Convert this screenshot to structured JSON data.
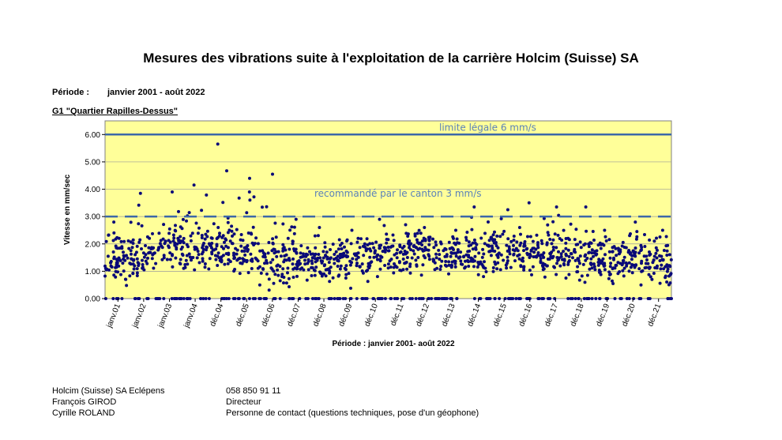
{
  "title": "Mesures des vibrations suite à l'exploitation de la carrière Holcim (Suisse) SA",
  "period_label": "Période :",
  "period_value": "janvier 2001 - août 2022",
  "station": "G1 \"Quartier Rapilles-Dessus\"",
  "footer": [
    {
      "left": "Holcim (Suisse) SA Eclépens",
      "right": "058 850 91 11"
    },
    {
      "left": "François GIROD",
      "right": "Directeur"
    },
    {
      "left": "Cyrille ROLAND",
      "right": "Personne de contact (questions techniques, pose d'un géophone)"
    }
  ],
  "colors": {
    "plot_background": "#ffff99",
    "points": "#0a0a78",
    "legal_limit_line": "#3c68a8",
    "recommended_line": "#3c68a8",
    "gridlines": "#9a9a9a",
    "annotation_text": "#5b82b9"
  },
  "chart_data": {
    "type": "scatter",
    "title": "Mesures des vibrations suite à l'exploitation de la carrière Holcim (Suisse) SA",
    "xlabel": "Période : janvier 2001- août 2022",
    "ylabel": "Vitesse en mm/sec",
    "ylim": [
      0,
      6.5
    ],
    "y_ticks": [
      "0.00",
      "1.00",
      "2.00",
      "3.00",
      "4.00",
      "5.00",
      "6.00"
    ],
    "x_ticks": [
      "janv.01",
      "janv.02",
      "janv.03",
      "janv.04",
      "déc.04",
      "déc.05",
      "déc.06",
      "déc.07",
      "déc.08",
      "déc.09",
      "déc.10",
      "déc.11",
      "déc.12",
      "déc.13",
      "déc.14",
      "déc.15",
      "déc.16",
      "déc.17",
      "déc.18",
      "déc.19",
      "déc.20",
      "déc.21"
    ],
    "grid": "horizontal",
    "legend": "none",
    "reference_lines": [
      {
        "label": "limite légale 6 mm/s",
        "y": 6.0,
        "style": "solid"
      },
      {
        "label": "recommandé par le canton 3 mm/s",
        "y": 3.0,
        "style": "dashed"
      }
    ],
    "series": [
      {
        "points_per_period_note": "approximate cloud of measurements per year",
        "x": [
          "janv.01",
          "janv.02",
          "janv.03",
          "janv.04",
          "déc.04",
          "déc.05",
          "déc.06",
          "déc.07",
          "déc.08",
          "déc.09",
          "déc.10",
          "déc.11",
          "déc.12",
          "déc.13",
          "déc.14",
          "déc.15",
          "déc.16",
          "déc.17",
          "déc.18",
          "déc.19",
          "déc.20",
          "déc.21"
        ],
        "median": [
          1.5,
          1.6,
          1.9,
          1.9,
          1.9,
          1.7,
          1.3,
          1.3,
          1.3,
          1.4,
          1.5,
          1.6,
          1.7,
          1.6,
          1.6,
          1.7,
          1.7,
          1.6,
          1.5,
          1.4,
          1.4,
          1.3
        ],
        "max": [
          2.8,
          3.85,
          3.9,
          4.15,
          5.65,
          4.4,
          4.55,
          2.9,
          2.6,
          2.5,
          2.9,
          2.7,
          2.6,
          2.5,
          3.35,
          3.25,
          3.5,
          3.35,
          3.35,
          2.5,
          2.8,
          2.5
        ]
      }
    ]
  }
}
